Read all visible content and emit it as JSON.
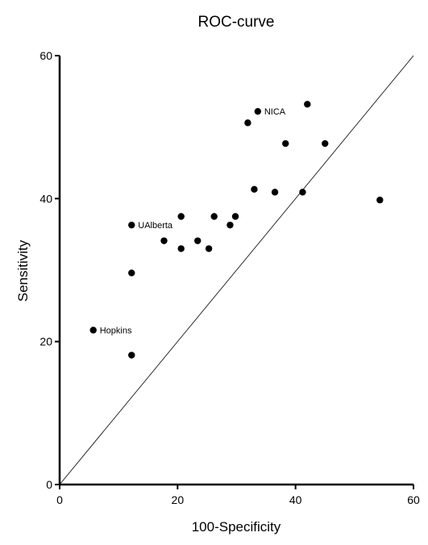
{
  "chart_data": {
    "type": "scatter",
    "title": "ROC-curve",
    "xlabel": "100-Specificity",
    "ylabel": "Sensitivity",
    "xlim": [
      0,
      60
    ],
    "ylim": [
      0,
      60
    ],
    "xticks": [
      "0",
      "20",
      "40",
      "60"
    ],
    "yticks": [
      "0",
      "20",
      "40",
      "60"
    ],
    "grid": false,
    "reference_line": {
      "from": [
        0,
        0
      ],
      "to": [
        60,
        60
      ]
    },
    "points": [
      {
        "x": 5.7,
        "y": 21.6,
        "label": "Hopkins"
      },
      {
        "x": 12.2,
        "y": 18.1
      },
      {
        "x": 12.2,
        "y": 29.6
      },
      {
        "x": 12.2,
        "y": 36.3,
        "label": "UAlberta"
      },
      {
        "x": 17.7,
        "y": 34.1
      },
      {
        "x": 20.6,
        "y": 33.0
      },
      {
        "x": 20.6,
        "y": 37.5
      },
      {
        "x": 23.4,
        "y": 34.1
      },
      {
        "x": 25.3,
        "y": 33.0
      },
      {
        "x": 26.2,
        "y": 37.5
      },
      {
        "x": 28.9,
        "y": 36.3
      },
      {
        "x": 29.8,
        "y": 37.5
      },
      {
        "x": 31.9,
        "y": 50.6
      },
      {
        "x": 33.0,
        "y": 41.3
      },
      {
        "x": 33.6,
        "y": 52.2,
        "label": "NICA"
      },
      {
        "x": 36.5,
        "y": 40.9
      },
      {
        "x": 38.3,
        "y": 47.7
      },
      {
        "x": 41.2,
        "y": 40.9
      },
      {
        "x": 42.0,
        "y": 53.2
      },
      {
        "x": 45.0,
        "y": 47.7
      },
      {
        "x": 54.3,
        "y": 39.8
      }
    ]
  }
}
